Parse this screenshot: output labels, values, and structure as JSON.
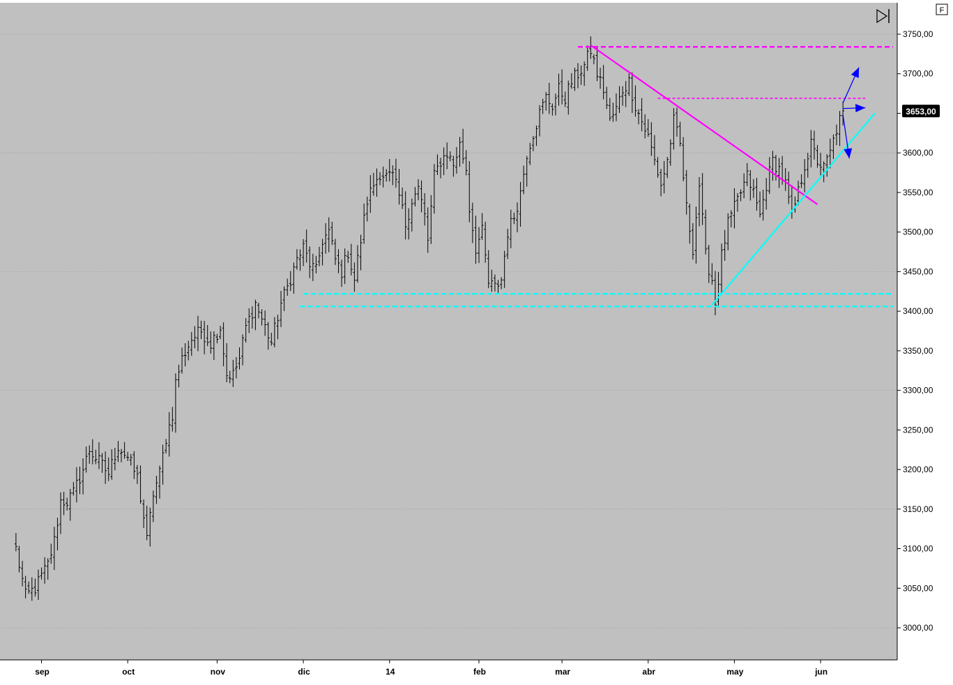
{
  "chart_data": {
    "type": "ohlc",
    "title": "",
    "xlabel": "",
    "ylabel": "",
    "ylim": [
      2960,
      3790
    ],
    "y_ticks": [
      3000,
      3050,
      3100,
      3150,
      3200,
      3250,
      3300,
      3350,
      3400,
      3450,
      3500,
      3550,
      3600,
      3650,
      3700,
      3750
    ],
    "y_tick_labels": [
      "3000,00",
      "3050,00",
      "3100,00",
      "3150,00",
      "3200,00",
      "3250,00",
      "3300,00",
      "3350,00",
      "3400,00",
      "3450,00",
      "3500,00",
      "3550,00",
      "3600,00",
      "3650,00",
      "3700,00",
      "3750,00"
    ],
    "gridlines_at": [
      3000,
      3150,
      3300,
      3450,
      3600,
      3750
    ],
    "x_labels": [
      "sep",
      "oct",
      "nov",
      "dic",
      "14",
      "feb",
      "mar",
      "abr",
      "may",
      "jun"
    ],
    "x_label_bars": [
      8,
      35,
      63,
      90,
      117,
      145,
      171,
      198,
      225,
      252
    ],
    "bar_count": 281,
    "x_span_bars": [
      -5,
      276
    ],
    "price_badge": "3653,00",
    "price_value": 3653,
    "corner_label": "F",
    "close_anchors": [
      [
        0,
        3100
      ],
      [
        3,
        3040
      ],
      [
        6,
        3050
      ],
      [
        10,
        3080
      ],
      [
        12,
        3110
      ],
      [
        14,
        3160
      ],
      [
        16,
        3160
      ],
      [
        18,
        3170
      ],
      [
        21,
        3200
      ],
      [
        23,
        3225
      ],
      [
        26,
        3210
      ],
      [
        29,
        3195
      ],
      [
        32,
        3230
      ],
      [
        35,
        3215
      ],
      [
        38,
        3190
      ],
      [
        40,
        3140
      ],
      [
        41,
        3110
      ],
      [
        43,
        3170
      ],
      [
        45,
        3195
      ],
      [
        47,
        3240
      ],
      [
        49,
        3270
      ],
      [
        50,
        3310
      ],
      [
        52,
        3340
      ],
      [
        55,
        3365
      ],
      [
        58,
        3375
      ],
      [
        61,
        3360
      ],
      [
        64,
        3380
      ],
      [
        66,
        3320
      ],
      [
        68,
        3320
      ],
      [
        70,
        3340
      ],
      [
        72,
        3380
      ],
      [
        75,
        3410
      ],
      [
        78,
        3380
      ],
      [
        80,
        3360
      ],
      [
        83,
        3410
      ],
      [
        85,
        3430
      ],
      [
        88,
        3465
      ],
      [
        90,
        3480
      ],
      [
        92,
        3460
      ],
      [
        94,
        3450
      ],
      [
        96,
        3490
      ],
      [
        98,
        3500
      ],
      [
        100,
        3465
      ],
      [
        102,
        3450
      ],
      [
        104,
        3475
      ],
      [
        106,
        3440
      ],
      [
        108,
        3490
      ],
      [
        110,
        3540
      ],
      [
        112,
        3560
      ],
      [
        114,
        3575
      ],
      [
        116,
        3570
      ],
      [
        118,
        3570
      ],
      [
        120,
        3545
      ],
      [
        122,
        3510
      ],
      [
        124,
        3540
      ],
      [
        126,
        3555
      ],
      [
        128,
        3520
      ],
      [
        129,
        3490
      ],
      [
        131,
        3570
      ],
      [
        133,
        3590
      ],
      [
        135,
        3600
      ],
      [
        137,
        3585
      ],
      [
        139,
        3610
      ],
      [
        141,
        3580
      ],
      [
        142,
        3530
      ],
      [
        144,
        3480
      ],
      [
        146,
        3500
      ],
      [
        148,
        3435
      ],
      [
        150,
        3430
      ],
      [
        152,
        3440
      ],
      [
        154,
        3500
      ],
      [
        156,
        3520
      ],
      [
        158,
        3550
      ],
      [
        160,
        3600
      ],
      [
        162,
        3625
      ],
      [
        164,
        3650
      ],
      [
        166,
        3670
      ],
      [
        168,
        3660
      ],
      [
        170,
        3680
      ],
      [
        172,
        3670
      ],
      [
        174,
        3690
      ],
      [
        176,
        3700
      ],
      [
        178,
        3710
      ],
      [
        180,
        3730
      ],
      [
        182,
        3700
      ],
      [
        184,
        3680
      ],
      [
        186,
        3640
      ],
      [
        188,
        3655
      ],
      [
        190,
        3680
      ],
      [
        192,
        3690
      ],
      [
        194,
        3660
      ],
      [
        196,
        3640
      ],
      [
        198,
        3620
      ],
      [
        200,
        3590
      ],
      [
        202,
        3560
      ],
      [
        204,
        3590
      ],
      [
        206,
        3640
      ],
      [
        208,
        3610
      ],
      [
        210,
        3530
      ],
      [
        212,
        3480
      ],
      [
        214,
        3560
      ],
      [
        216,
        3470
      ],
      [
        218,
        3440
      ],
      [
        219,
        3410
      ],
      [
        221,
        3470
      ],
      [
        223,
        3510
      ],
      [
        225,
        3530
      ],
      [
        227,
        3550
      ],
      [
        229,
        3570
      ],
      [
        231,
        3550
      ],
      [
        233,
        3520
      ],
      [
        235,
        3560
      ],
      [
        237,
        3590
      ],
      [
        239,
        3580
      ],
      [
        241,
        3560
      ],
      [
        243,
        3520
      ],
      [
        245,
        3550
      ],
      [
        247,
        3585
      ],
      [
        249,
        3610
      ],
      [
        251,
        3590
      ],
      [
        253,
        3580
      ],
      [
        255,
        3600
      ],
      [
        257,
        3630
      ],
      [
        259,
        3653
      ]
    ],
    "lines": [
      {
        "name": "resistance-top",
        "color": "#ff00ff",
        "style": "dashed",
        "from": [
          176,
          3734
        ],
        "to": [
          276,
          3734
        ]
      },
      {
        "name": "resistance-mid",
        "color": "#ff00ff",
        "style": "dashed",
        "from": [
          201,
          3669
        ],
        "to": [
          266,
          3669
        ]
      },
      {
        "name": "downtrend",
        "color": "#ff00ff",
        "style": "solid",
        "from": [
          180,
          3736
        ],
        "to": [
          251,
          3535
        ]
      },
      {
        "name": "support-upper",
        "color": "#00ffff",
        "style": "dashed",
        "from": [
          90,
          3422
        ],
        "to": [
          276,
          3422
        ]
      },
      {
        "name": "support-lower",
        "color": "#00ffff",
        "style": "dashed",
        "from": [
          89,
          3406
        ],
        "to": [
          276,
          3406
        ]
      },
      {
        "name": "uptrend",
        "color": "#00ffff",
        "style": "solid",
        "from": [
          218,
          3408
        ],
        "to": [
          269,
          3650
        ]
      }
    ],
    "arrows": [
      {
        "name": "arrow-up",
        "color": "#0000ff",
        "from": [
          259,
          3663
        ],
        "to": [
          264,
          3708
        ]
      },
      {
        "name": "arrow-flat",
        "color": "#0000ff",
        "from": [
          259,
          3656
        ],
        "to": [
          266,
          3657
        ]
      },
      {
        "name": "arrow-down",
        "color": "#0000ff",
        "from": [
          259,
          3648
        ],
        "to": [
          261,
          3593
        ]
      }
    ],
    "colors": {
      "background": "#c0c0c0",
      "bars": "#000000",
      "axis_area": "#ffffff",
      "badge_bg": "#000000",
      "badge_text": "#ffffff"
    }
  }
}
